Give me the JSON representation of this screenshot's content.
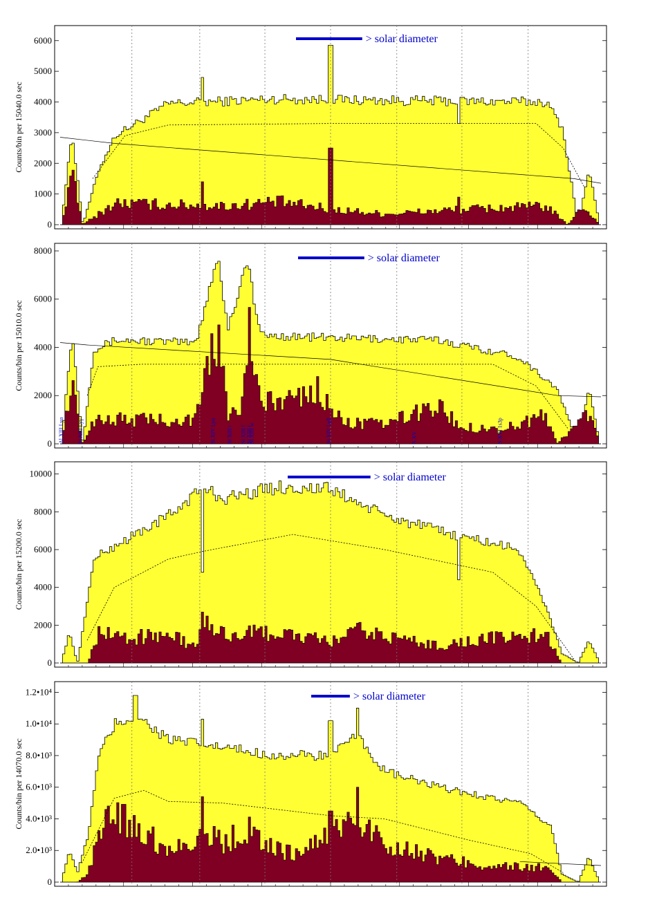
{
  "colors": {
    "total_fill": "#ffff33",
    "subset_fill": "#7f0022",
    "outline": "#000000",
    "annotation": "#0000cc",
    "grid": "#777777"
  },
  "chart_data": [
    {
      "type": "histogram",
      "ylabel": "Counts/bin per  15040.0 sec",
      "ylim": [
        0,
        6400
      ],
      "yticks": [
        {
          "value": 0,
          "label": "0"
        },
        {
          "value": 1000,
          "label": "1000"
        },
        {
          "value": 2000,
          "label": "2000"
        },
        {
          "value": 3000,
          "label": "3000"
        },
        {
          "value": 4000,
          "label": "4000"
        },
        {
          "value": 5000,
          "label": "5000"
        },
        {
          "value": 6000,
          "label": "6000"
        }
      ],
      "grid_x": [
        0.14,
        0.263,
        0.381,
        0.5,
        0.62,
        0.738,
        0.858
      ],
      "annotation": "> solar diameter",
      "diameter_bar_frac": 0.12,
      "series": {
        "yellow": {
          "base": 0,
          "segments": [
            [
              0,
              0
            ],
            [
              0.02,
              3000
            ],
            [
              0.04,
              0
            ],
            [
              0.07,
              1800
            ],
            [
              0.1,
              2900
            ],
            [
              0.2,
              3950
            ],
            [
              0.4,
              4100
            ],
            [
              0.6,
              4050
            ],
            [
              0.9,
              4000
            ],
            [
              0.93,
              3200
            ],
            [
              0.95,
              1100
            ],
            [
              0.96,
              0
            ],
            [
              0.98,
              1800
            ],
            [
              1.0,
              0
            ]
          ],
          "spikes": [
            [
              0.263,
              4800
            ],
            [
              0.5,
              5850
            ],
            [
              0.738,
              3300
            ]
          ]
        },
        "red": {
          "segments": [
            [
              0,
              0
            ],
            [
              0.02,
              1600
            ],
            [
              0.04,
              0
            ],
            [
              0.1,
              700
            ],
            [
              0.2,
              650
            ],
            [
              0.3,
              600
            ],
            [
              0.4,
              750
            ],
            [
              0.5,
              500
            ],
            [
              0.6,
              350
            ],
            [
              0.75,
              500
            ],
            [
              0.9,
              600
            ],
            [
              0.94,
              0
            ],
            [
              0.97,
              600
            ],
            [
              1.0,
              0
            ]
          ],
          "spikes": [
            [
              0.263,
              1400
            ],
            [
              0.5,
              2500
            ],
            [
              0.738,
              900
            ]
          ]
        },
        "dashed": [
          [
            0.06,
            1500
          ],
          [
            0.12,
            2900
          ],
          [
            0.2,
            3250
          ],
          [
            0.5,
            3300
          ],
          [
            0.88,
            3300
          ],
          [
            0.93,
            2500
          ],
          [
            0.97,
            1200
          ]
        ],
        "solid_line": [
          [
            0,
            2850
          ],
          [
            0.1,
            2650
          ],
          [
            0.95,
            1500
          ],
          [
            1.0,
            1350
          ]
        ]
      },
      "labels": []
    },
    {
      "type": "histogram",
      "ylabel": "Counts/bin per  15010.0 sec",
      "ylim": [
        0,
        8200
      ],
      "yticks": [
        {
          "value": 0,
          "label": "0"
        },
        {
          "value": 2000,
          "label": "2000"
        },
        {
          "value": 4000,
          "label": "4000"
        },
        {
          "value": 6000,
          "label": "6000"
        },
        {
          "value": 8000,
          "label": "8000"
        }
      ],
      "grid_x": [
        0.14,
        0.263,
        0.381,
        0.5,
        0.62,
        0.738,
        0.858
      ],
      "annotation": "> solar diameter",
      "diameter_bar_frac": 0.12,
      "series": {
        "yellow": {
          "segments": [
            [
              0,
              0
            ],
            [
              0.02,
              4600
            ],
            [
              0.04,
              0
            ],
            [
              0.06,
              3900
            ],
            [
              0.1,
              4300
            ],
            [
              0.25,
              4200
            ],
            [
              0.29,
              7800
            ],
            [
              0.31,
              4800
            ],
            [
              0.345,
              7600
            ],
            [
              0.37,
              4500
            ],
            [
              0.5,
              4400
            ],
            [
              0.7,
              4300
            ],
            [
              0.85,
              3600
            ],
            [
              0.92,
              2300
            ],
            [
              0.96,
              0
            ],
            [
              0.98,
              2300
            ],
            [
              1.0,
              0
            ]
          ]
        },
        "red": {
          "segments": [
            [
              0,
              0
            ],
            [
              0.02,
              2400
            ],
            [
              0.04,
              0
            ],
            [
              0.06,
              1000
            ],
            [
              0.25,
              1000
            ],
            [
              0.29,
              4600
            ],
            [
              0.31,
              1200
            ],
            [
              0.32,
              2100
            ],
            [
              0.33,
              1200
            ],
            [
              0.35,
              4500
            ],
            [
              0.37,
              1600
            ],
            [
              0.48,
              2200
            ],
            [
              0.52,
              900
            ],
            [
              0.6,
              800
            ],
            [
              0.7,
              1600
            ],
            [
              0.74,
              700
            ],
            [
              0.82,
              600
            ],
            [
              0.9,
              1200
            ],
            [
              0.92,
              0
            ],
            [
              0.98,
              1300
            ],
            [
              1.0,
              0
            ]
          ]
        },
        "dashed": [
          [
            0.05,
            2000
          ],
          [
            0.07,
            3200
          ],
          [
            0.15,
            3300
          ],
          [
            0.8,
            3300
          ],
          [
            0.88,
            2400
          ],
          [
            0.94,
            600
          ]
        ],
        "solid_line": [
          [
            0,
            4200
          ],
          [
            0.05,
            4100
          ],
          [
            0.5,
            3500
          ],
          [
            0.92,
            2000
          ],
          [
            1.0,
            1950
          ]
        ]
      },
      "labels": [
        {
          "x": 0.015,
          "text": "Al XIII Lyα"
        },
        {
          "x": 0.05,
          "text": "Si XIII Lyγ"
        },
        {
          "x": 0.29,
          "text": "Si XIV Lyα"
        },
        {
          "x": 0.32,
          "text": "Si XIII r"
        },
        {
          "x": 0.345,
          "text": "Si XIII f"
        },
        {
          "x": 0.355,
          "text": "Si XIII i"
        },
        {
          "x": 0.36,
          "text": "Si XIII w"
        },
        {
          "x": 0.5,
          "text": "Si XIV Lyβ"
        },
        {
          "x": 0.655,
          "text": "S XV"
        },
        {
          "x": 0.81,
          "text": "S XVI 1s3p"
        }
      ]
    },
    {
      "type": "histogram",
      "ylabel": "Counts/bin per  15200.0 sec",
      "ylim": [
        0,
        10500
      ],
      "yticks": [
        {
          "value": 0,
          "label": "0"
        },
        {
          "value": 2000,
          "label": "2000"
        },
        {
          "value": 4000,
          "label": "4000"
        },
        {
          "value": 6000,
          "label": "6000"
        },
        {
          "value": 8000,
          "label": "8000"
        },
        {
          "value": 10000,
          "label": "10000"
        }
      ],
      "grid_x": [
        0.14,
        0.263,
        0.381,
        0.5,
        0.62,
        0.738,
        0.858
      ],
      "annotation": "> solar diameter",
      "diameter_bar_frac": 0.15,
      "series": {
        "yellow": {
          "segments": [
            [
              0,
              0
            ],
            [
              0.015,
              1600
            ],
            [
              0.03,
              0
            ],
            [
              0.05,
              3500
            ],
            [
              0.06,
              5500
            ],
            [
              0.1,
              6200
            ],
            [
              0.2,
              7800
            ],
            [
              0.263,
              9300
            ],
            [
              0.3,
              8700
            ],
            [
              0.4,
              9300
            ],
            [
              0.5,
              9200
            ],
            [
              0.6,
              7800
            ],
            [
              0.7,
              7000
            ],
            [
              0.85,
              6000
            ],
            [
              0.9,
              3000
            ],
            [
              0.93,
              500
            ],
            [
              0.96,
              0
            ],
            [
              0.98,
              1200
            ],
            [
              1.0,
              0
            ]
          ],
          "spikes": [
            [
              0.263,
              4800
            ],
            [
              0.738,
              4400
            ]
          ]
        },
        "red": {
          "segments": [
            [
              0,
              0
            ],
            [
              0.05,
              0
            ],
            [
              0.07,
              1700
            ],
            [
              0.12,
              1300
            ],
            [
              0.2,
              1500
            ],
            [
              0.25,
              800
            ],
            [
              0.263,
              2300
            ],
            [
              0.3,
              1500
            ],
            [
              0.4,
              1600
            ],
            [
              0.5,
              1100
            ],
            [
              0.55,
              1700
            ],
            [
              0.7,
              900
            ],
            [
              0.8,
              1300
            ],
            [
              0.9,
              1500
            ],
            [
              0.93,
              0
            ],
            [
              1.0,
              0
            ]
          ]
        },
        "dashed": [
          [
            0.05,
            1200
          ],
          [
            0.1,
            4000
          ],
          [
            0.2,
            5500
          ],
          [
            0.263,
            5900
          ],
          [
            0.43,
            6800
          ],
          [
            0.6,
            6000
          ],
          [
            0.8,
            4800
          ],
          [
            0.88,
            3000
          ],
          [
            0.95,
            200
          ]
        ],
        "solid_line": []
      },
      "labels": []
    },
    {
      "type": "histogram",
      "ylabel": "Counts/bin per  14070.0 sec",
      "ylim": [
        0,
        12500
      ],
      "yticks": [
        {
          "value": 0,
          "label": "0"
        },
        {
          "value": 2000,
          "label": "2.0•10³"
        },
        {
          "value": 4000,
          "label": "4.0•10³"
        },
        {
          "value": 6000,
          "label": "6.0•10³"
        },
        {
          "value": 8000,
          "label": "8.0•10³"
        },
        {
          "value": 10000,
          "label": "1.0•10⁴"
        },
        {
          "value": 12000,
          "label": "1.2•10⁴"
        }
      ],
      "grid_x": [
        0.14,
        0.263,
        0.381,
        0.5,
        0.62,
        0.738,
        0.858
      ],
      "annotation": "> solar diameter",
      "diameter_bar_frac": 0.07,
      "series": {
        "yellow": {
          "segments": [
            [
              0,
              0
            ],
            [
              0.015,
              2000
            ],
            [
              0.03,
              600
            ],
            [
              0.05,
              3000
            ],
            [
              0.07,
              8000
            ],
            [
              0.1,
              10000
            ],
            [
              0.14,
              10500
            ],
            [
              0.2,
              9000
            ],
            [
              0.3,
              8500
            ],
            [
              0.4,
              8000
            ],
            [
              0.5,
              8000
            ],
            [
              0.55,
              9200
            ],
            [
              0.6,
              7000
            ],
            [
              0.7,
              6000
            ],
            [
              0.85,
              5000
            ],
            [
              0.91,
              3500
            ],
            [
              0.93,
              500
            ],
            [
              0.96,
              0
            ],
            [
              0.98,
              1600
            ],
            [
              1.0,
              0
            ]
          ],
          "spikes": [
            [
              0.138,
              11800
            ],
            [
              0.263,
              10300
            ],
            [
              0.5,
              10200
            ],
            [
              0.55,
              11000
            ]
          ]
        },
        "red": {
          "segments": [
            [
              0,
              0
            ],
            [
              0.03,
              0
            ],
            [
              0.05,
              500
            ],
            [
              0.07,
              3000
            ],
            [
              0.1,
              4500
            ],
            [
              0.14,
              3500
            ],
            [
              0.2,
              2000
            ],
            [
              0.263,
              3000
            ],
            [
              0.3,
              2500
            ],
            [
              0.35,
              3300
            ],
            [
              0.4,
              2000
            ],
            [
              0.45,
              1800
            ],
            [
              0.5,
              3300
            ],
            [
              0.55,
              4000
            ],
            [
              0.6,
              2500
            ],
            [
              0.7,
              1500
            ],
            [
              0.8,
              1000
            ],
            [
              0.9,
              900
            ],
            [
              0.93,
              0
            ],
            [
              1.0,
              0
            ]
          ],
          "spikes": [
            [
              0.5,
              4500
            ],
            [
              0.263,
              5400
            ],
            [
              0.55,
              6000
            ]
          ]
        },
        "dashed": [
          [
            0.04,
            1200
          ],
          [
            0.1,
            5300
          ],
          [
            0.155,
            5800
          ],
          [
            0.2,
            5100
          ],
          [
            0.3,
            5000
          ],
          [
            0.5,
            4200
          ],
          [
            0.6,
            4000
          ],
          [
            0.75,
            2700
          ],
          [
            0.87,
            1800
          ],
          [
            0.93,
            600
          ]
        ],
        "solid_line": [
          [
            0.85,
            1300
          ],
          [
            1.0,
            1050
          ]
        ]
      },
      "labels": []
    }
  ]
}
